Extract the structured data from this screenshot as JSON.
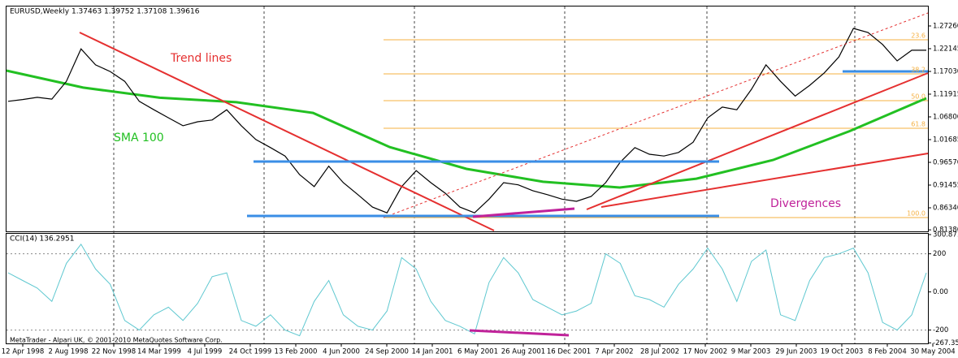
{
  "chart_data": {
    "type": "line",
    "title": "EURUSD,Weekly  1.37463 1.39752 1.37108 1.39616",
    "categories": [
      "12 Apr 1998",
      "2 Aug 1998",
      "22 Nov 1998",
      "14 Mar 1999",
      "4 Jul 1999",
      "24 Oct 1999",
      "13 Feb 2000",
      "4 Jun 2000",
      "24 Sep 2000",
      "14 Jan 2001",
      "6 May 2001",
      "26 Aug 2001",
      "16 Dec 2001",
      "7 Apr 2002",
      "28 Jul 2002",
      "17 Nov 2002",
      "9 Mar 2003",
      "29 Jun 2003",
      "19 Oct 2003",
      "8 Feb 2004",
      "30 May 2004"
    ],
    "ylim": [
      0.8104,
      1.3164
    ],
    "yticks": [
      {
        "value": 1.2726,
        "label": "1.27260"
      },
      {
        "value": 1.22145,
        "label": "1.22145"
      },
      {
        "value": 1.1703,
        "label": "1.17030"
      },
      {
        "value": 1.11915,
        "label": "1.11915"
      },
      {
        "value": 1.068,
        "label": "1.06800"
      },
      {
        "value": 1.01685,
        "label": "1.01685"
      },
      {
        "value": 0.9657,
        "label": "0.96570"
      },
      {
        "value": 0.91455,
        "label": "0.91455"
      },
      {
        "value": 0.8634,
        "label": "0.86340"
      },
      {
        "value": 0.8138,
        "label": "0.81380"
      }
    ],
    "price": {
      "color": "#000000",
      "values": [
        1.103,
        1.107,
        1.112,
        1.108,
        1.148,
        1.221,
        1.185,
        1.17,
        1.148,
        1.103,
        1.084,
        1.066,
        1.048,
        1.057,
        1.061,
        1.084,
        1.048,
        1.017,
        0.999,
        0.98,
        0.938,
        0.911,
        0.957,
        0.92,
        0.893,
        0.865,
        0.852,
        0.911,
        0.947,
        0.92,
        0.896,
        0.865,
        0.852,
        0.883,
        0.92,
        0.915,
        0.902,
        0.893,
        0.883,
        0.878,
        0.889,
        0.92,
        0.966,
        0.999,
        0.984,
        0.98,
        0.988,
        1.011,
        1.066,
        1.09,
        1.084,
        1.13,
        1.185,
        1.148,
        1.115,
        1.139,
        1.167,
        1.203,
        1.267,
        1.258,
        1.231,
        1.194,
        1.218,
        1.218
      ]
    },
    "sma": {
      "name": "SMA 100",
      "color": "#22c022",
      "values": [
        1.172,
        1.134,
        1.111,
        1.101,
        1.077,
        1.0,
        0.951,
        0.922,
        0.909,
        0.929,
        0.971,
        1.036,
        1.11
      ]
    },
    "annotations": [
      "Trend lines",
      "Divergences"
    ],
    "fibo": {
      "color": "#f5b041",
      "levels": [
        {
          "label": "23.6",
          "value": 1.2415
        },
        {
          "label": "38.2",
          "value": 1.1648
        },
        {
          "label": "50.0",
          "value": 1.1045
        },
        {
          "label": "61.8",
          "value": 1.0424
        },
        {
          "label": "100.0",
          "value": 0.8414
        }
      ]
    },
    "cci": {
      "title": "CCI(14) 136.2951",
      "color": "#5fc8d0",
      "ylim": [
        -270,
        305
      ],
      "yticks": [
        300.8716,
        200,
        {
          "value": 0,
          "label": "0.00"
        },
        -200,
        -267.3541
      ],
      "values": [
        100,
        60,
        20,
        -50,
        150,
        250,
        120,
        40,
        -150,
        -200,
        -120,
        -80,
        -150,
        -60,
        80,
        100,
        -150,
        -180,
        -120,
        -200,
        -230,
        -50,
        60,
        -120,
        -180,
        -200,
        -100,
        180,
        120,
        -50,
        -150,
        -180,
        -220,
        50,
        180,
        100,
        -40,
        -80,
        -120,
        -100,
        -60,
        200,
        150,
        -20,
        -40,
        -80,
        40,
        120,
        230,
        120,
        -50,
        160,
        220,
        -120,
        -150,
        60,
        180,
        200,
        230,
        100,
        -160,
        -200,
        -120,
        100
      ]
    },
    "footer": "MetaTrader - Alpari UK, © 2001-2010 MetaQuotes Software Corp."
  }
}
